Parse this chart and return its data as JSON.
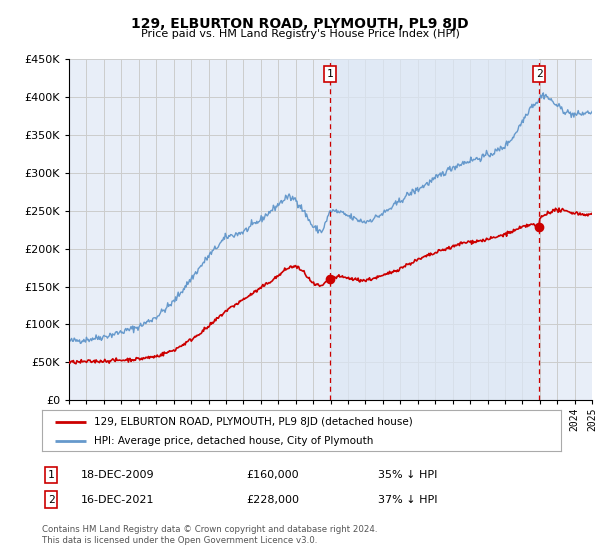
{
  "title": "129, ELBURTON ROAD, PLYMOUTH, PL9 8JD",
  "subtitle": "Price paid vs. HM Land Registry's House Price Index (HPI)",
  "red_label": "129, ELBURTON ROAD, PLYMOUTH, PL9 8JD (detached house)",
  "blue_label": "HPI: Average price, detached house, City of Plymouth",
  "annotation1_date": "18-DEC-2009",
  "annotation1_price": "£160,000",
  "annotation1_hpi": "35% ↓ HPI",
  "annotation1_year": 2009.96,
  "annotation1_value": 160000,
  "annotation2_date": "16-DEC-2021",
  "annotation2_price": "£228,000",
  "annotation2_hpi": "37% ↓ HPI",
  "annotation2_year": 2021.96,
  "annotation2_value": 228000,
  "footer": "Contains HM Land Registry data © Crown copyright and database right 2024.\nThis data is licensed under the Open Government Licence v3.0.",
  "red_color": "#cc0000",
  "blue_color": "#6699cc",
  "grid_color": "#cccccc",
  "bg_color": "#ffffff",
  "plot_bg_color": "#e8eef8",
  "shade_color": "#dde8f5",
  "vline_color": "#cc0000",
  "ylim": [
    0,
    450000
  ],
  "xlim_start": 1995,
  "xlim_end": 2025
}
